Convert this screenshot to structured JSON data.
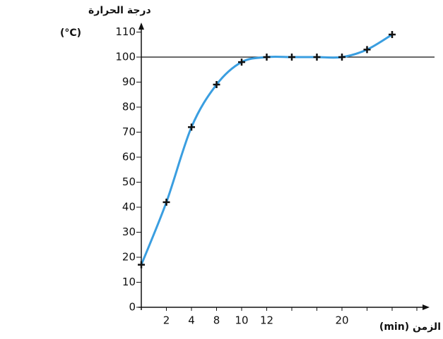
{
  "chart_data": {
    "type": "line",
    "y_label": "درجة الحرارة",
    "y_unit": "(°C)",
    "x_label": "الزمن (min)",
    "categories": [
      null,
      "2",
      "4",
      "8",
      "10",
      "12",
      null,
      null,
      "20",
      null,
      null
    ],
    "values": [
      17,
      42,
      72,
      89,
      98,
      100,
      100,
      100,
      100,
      103,
      109
    ],
    "color": "#3a9ee0",
    "ylim": [
      0,
      115
    ],
    "yticks": [
      0,
      10,
      20,
      30,
      40,
      50,
      60,
      70,
      80,
      90,
      100,
      110
    ],
    "reference_line": 100
  }
}
